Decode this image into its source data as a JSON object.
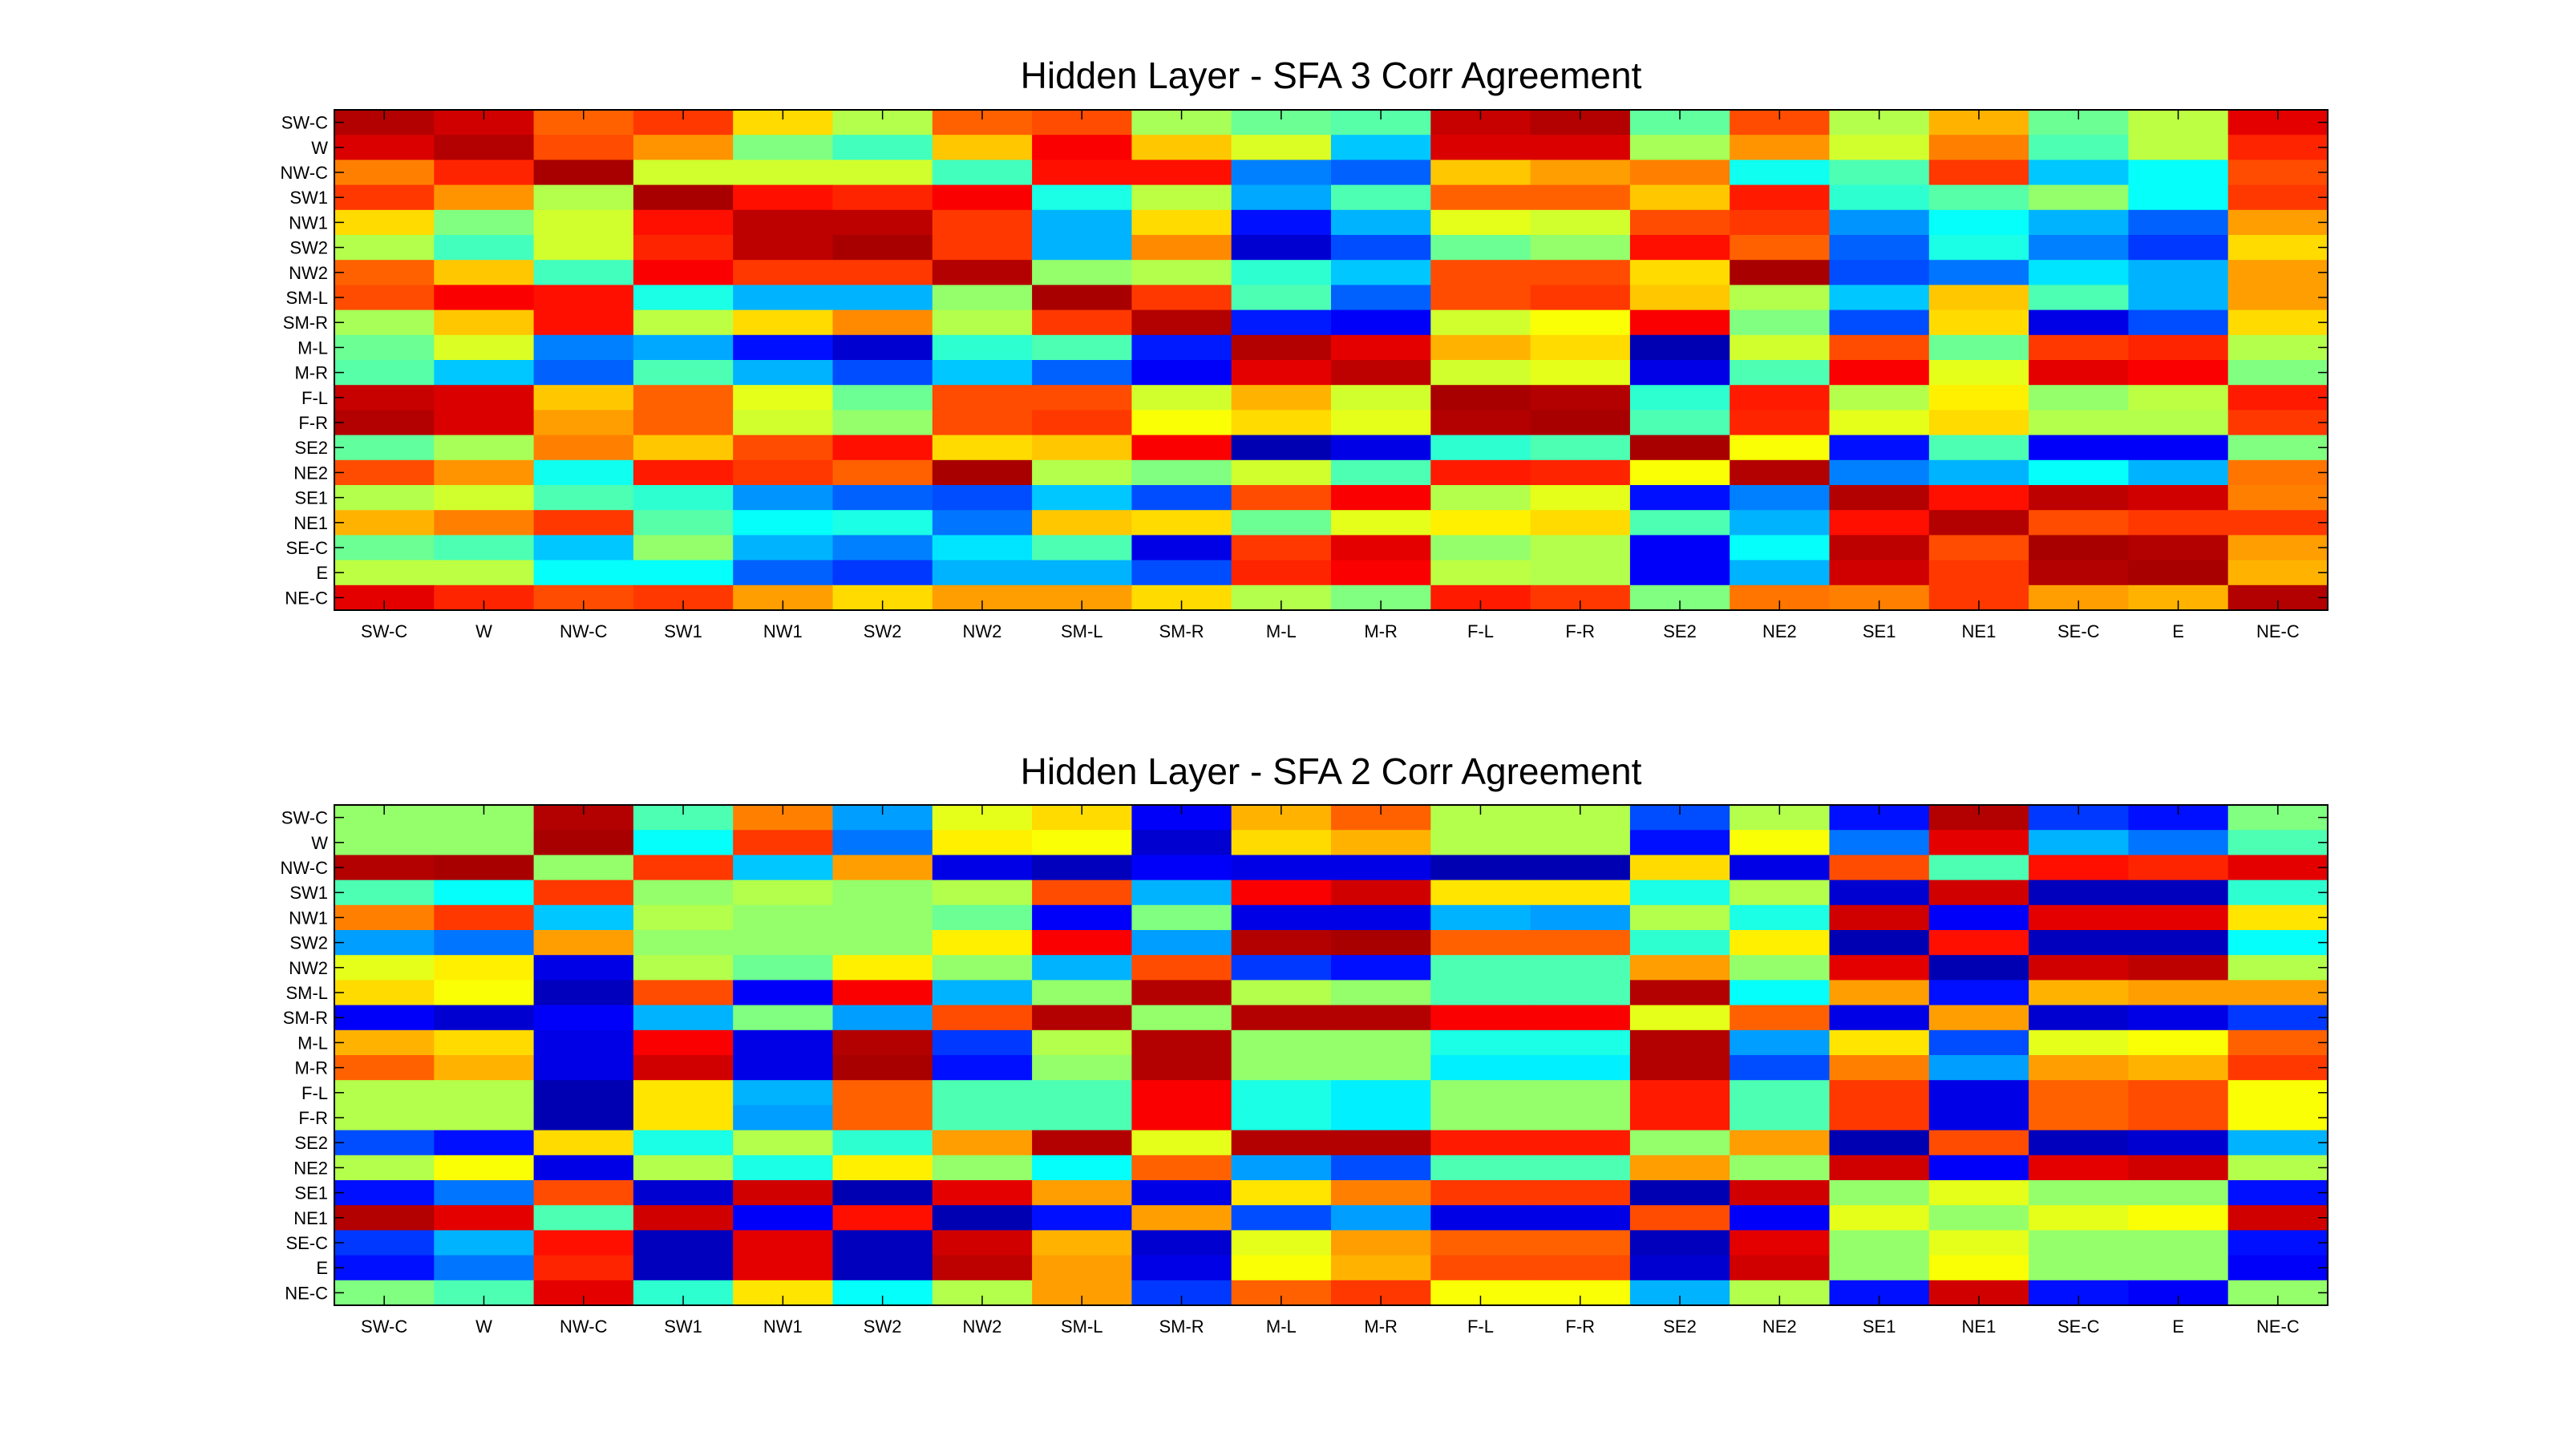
{
  "chart_data": [
    {
      "type": "heatmap",
      "title": "Hidden Layer - SFA 3 Corr Agreement",
      "xlabel": "",
      "ylabel": "",
      "colormap": "jet",
      "value_range": [
        0,
        1
      ],
      "x_categories": [
        "SW-C",
        "W",
        "NW-C",
        "SW1",
        "NW1",
        "SW2",
        "NW2",
        "SM-L",
        "SM-R",
        "M-L",
        "M-R",
        "F-L",
        "F-R",
        "SE2",
        "NE2",
        "SE1",
        "NE1",
        "SE-C",
        "E",
        "NE-C"
      ],
      "y_categories": [
        "SW-C",
        "W",
        "NW-C",
        "SW1",
        "NW1",
        "SW2",
        "NW2",
        "SM-L",
        "SM-R",
        "M-L",
        "M-R",
        "F-L",
        "F-R",
        "SE2",
        "NE2",
        "SE1",
        "NE1",
        "SE-C",
        "E",
        "NE-C"
      ],
      "grid": false,
      "values": [
        [
          0.95,
          0.92,
          0.78,
          0.82,
          0.66,
          0.55,
          0.78,
          0.8,
          0.54,
          0.48,
          0.46,
          0.93,
          0.95,
          0.47,
          0.8,
          0.55,
          0.7,
          0.48,
          0.56,
          0.9
        ],
        [
          0.91,
          0.95,
          0.8,
          0.73,
          0.5,
          0.44,
          0.68,
          0.88,
          0.68,
          0.59,
          0.32,
          0.91,
          0.91,
          0.54,
          0.73,
          0.58,
          0.75,
          0.45,
          0.56,
          0.84
        ],
        [
          0.75,
          0.84,
          0.96,
          0.58,
          0.58,
          0.58,
          0.44,
          0.86,
          0.86,
          0.25,
          0.22,
          0.68,
          0.72,
          0.75,
          0.39,
          0.45,
          0.82,
          0.32,
          0.38,
          0.8
        ],
        [
          0.82,
          0.73,
          0.55,
          0.96,
          0.86,
          0.84,
          0.88,
          0.4,
          0.56,
          0.29,
          0.45,
          0.78,
          0.78,
          0.68,
          0.85,
          0.42,
          0.46,
          0.52,
          0.38,
          0.82
        ],
        [
          0.66,
          0.5,
          0.58,
          0.86,
          0.94,
          0.94,
          0.82,
          0.3,
          0.66,
          0.14,
          0.3,
          0.6,
          0.58,
          0.8,
          0.82,
          0.27,
          0.38,
          0.3,
          0.22,
          0.72
        ],
        [
          0.55,
          0.44,
          0.58,
          0.84,
          0.94,
          0.96,
          0.82,
          0.3,
          0.74,
          0.08,
          0.2,
          0.48,
          0.52,
          0.86,
          0.78,
          0.22,
          0.4,
          0.25,
          0.18,
          0.66
        ],
        [
          0.78,
          0.68,
          0.44,
          0.88,
          0.82,
          0.82,
          0.95,
          0.52,
          0.55,
          0.42,
          0.32,
          0.8,
          0.8,
          0.66,
          0.96,
          0.2,
          0.24,
          0.35,
          0.3,
          0.72
        ],
        [
          0.8,
          0.88,
          0.86,
          0.4,
          0.3,
          0.3,
          0.52,
          0.96,
          0.82,
          0.45,
          0.22,
          0.8,
          0.82,
          0.68,
          0.55,
          0.32,
          0.68,
          0.45,
          0.3,
          0.72
        ],
        [
          0.54,
          0.68,
          0.86,
          0.56,
          0.66,
          0.74,
          0.55,
          0.82,
          0.95,
          0.15,
          0.12,
          0.58,
          0.62,
          0.88,
          0.5,
          0.2,
          0.66,
          0.1,
          0.2,
          0.66
        ],
        [
          0.48,
          0.59,
          0.25,
          0.29,
          0.14,
          0.08,
          0.42,
          0.45,
          0.15,
          0.95,
          0.9,
          0.7,
          0.66,
          0.05,
          0.58,
          0.8,
          0.48,
          0.82,
          0.84,
          0.55
        ],
        [
          0.46,
          0.32,
          0.22,
          0.45,
          0.3,
          0.2,
          0.32,
          0.22,
          0.12,
          0.9,
          0.94,
          0.58,
          0.6,
          0.1,
          0.45,
          0.88,
          0.6,
          0.9,
          0.88,
          0.5
        ],
        [
          0.93,
          0.91,
          0.68,
          0.78,
          0.6,
          0.48,
          0.8,
          0.8,
          0.58,
          0.7,
          0.58,
          0.96,
          0.95,
          0.42,
          0.85,
          0.55,
          0.64,
          0.52,
          0.56,
          0.85
        ],
        [
          0.95,
          0.91,
          0.72,
          0.78,
          0.58,
          0.52,
          0.8,
          0.82,
          0.62,
          0.66,
          0.6,
          0.95,
          0.96,
          0.45,
          0.84,
          0.6,
          0.66,
          0.55,
          0.55,
          0.82
        ],
        [
          0.47,
          0.54,
          0.75,
          0.68,
          0.8,
          0.86,
          0.66,
          0.68,
          0.88,
          0.05,
          0.1,
          0.42,
          0.45,
          0.96,
          0.62,
          0.14,
          0.45,
          0.12,
          0.12,
          0.5
        ],
        [
          0.8,
          0.73,
          0.39,
          0.85,
          0.82,
          0.78,
          0.96,
          0.55,
          0.5,
          0.58,
          0.45,
          0.85,
          0.84,
          0.62,
          0.95,
          0.25,
          0.3,
          0.38,
          0.3,
          0.76
        ],
        [
          0.55,
          0.58,
          0.45,
          0.42,
          0.27,
          0.22,
          0.2,
          0.32,
          0.2,
          0.8,
          0.88,
          0.55,
          0.6,
          0.14,
          0.25,
          0.95,
          0.86,
          0.94,
          0.92,
          0.75
        ],
        [
          0.7,
          0.75,
          0.82,
          0.46,
          0.38,
          0.4,
          0.24,
          0.68,
          0.66,
          0.48,
          0.6,
          0.64,
          0.66,
          0.45,
          0.3,
          0.86,
          0.95,
          0.8,
          0.82,
          0.82
        ],
        [
          0.48,
          0.45,
          0.32,
          0.52,
          0.3,
          0.25,
          0.35,
          0.45,
          0.1,
          0.82,
          0.9,
          0.52,
          0.55,
          0.12,
          0.38,
          0.94,
          0.8,
          0.96,
          0.95,
          0.72
        ],
        [
          0.56,
          0.56,
          0.38,
          0.38,
          0.22,
          0.18,
          0.3,
          0.3,
          0.2,
          0.84,
          0.88,
          0.56,
          0.55,
          0.12,
          0.3,
          0.92,
          0.82,
          0.95,
          0.96,
          0.7
        ],
        [
          0.9,
          0.84,
          0.8,
          0.82,
          0.72,
          0.66,
          0.72,
          0.72,
          0.66,
          0.55,
          0.5,
          0.85,
          0.82,
          0.5,
          0.76,
          0.75,
          0.82,
          0.72,
          0.7,
          0.95
        ]
      ]
    },
    {
      "type": "heatmap",
      "title": "Hidden Layer - SFA 2 Corr Agreement",
      "xlabel": "",
      "ylabel": "",
      "colormap": "jet",
      "value_range": [
        0,
        1
      ],
      "x_categories": [
        "SW-C",
        "W",
        "NW-C",
        "SW1",
        "NW1",
        "SW2",
        "NW2",
        "SM-L",
        "SM-R",
        "M-L",
        "M-R",
        "F-L",
        "F-R",
        "SE2",
        "NE2",
        "SE1",
        "NE1",
        "SE-C",
        "E",
        "NE-C"
      ],
      "y_categories": [
        "SW-C",
        "W",
        "NW-C",
        "SW1",
        "NW1",
        "SW2",
        "NW2",
        "SM-L",
        "SM-R",
        "M-L",
        "M-R",
        "F-L",
        "F-R",
        "SE2",
        "NE2",
        "SE1",
        "NE1",
        "SE-C",
        "E",
        "NE-C"
      ],
      "grid": false,
      "values": [
        [
          0.52,
          0.52,
          0.95,
          0.45,
          0.75,
          0.28,
          0.6,
          0.66,
          0.12,
          0.7,
          0.78,
          0.55,
          0.55,
          0.2,
          0.55,
          0.14,
          0.95,
          0.18,
          0.14,
          0.5
        ],
        [
          0.52,
          0.52,
          0.96,
          0.38,
          0.82,
          0.24,
          0.64,
          0.62,
          0.08,
          0.66,
          0.7,
          0.55,
          0.55,
          0.14,
          0.62,
          0.24,
          0.9,
          0.3,
          0.24,
          0.45
        ],
        [
          0.95,
          0.96,
          0.52,
          0.82,
          0.32,
          0.72,
          0.1,
          0.06,
          0.12,
          0.1,
          0.1,
          0.05,
          0.05,
          0.66,
          0.1,
          0.8,
          0.45,
          0.86,
          0.84,
          0.9
        ],
        [
          0.45,
          0.38,
          0.82,
          0.52,
          0.55,
          0.52,
          0.55,
          0.8,
          0.3,
          0.88,
          0.92,
          0.65,
          0.65,
          0.4,
          0.55,
          0.08,
          0.92,
          0.06,
          0.06,
          0.42
        ],
        [
          0.75,
          0.82,
          0.32,
          0.55,
          0.52,
          0.52,
          0.48,
          0.12,
          0.5,
          0.1,
          0.1,
          0.3,
          0.28,
          0.55,
          0.4,
          0.92,
          0.12,
          0.9,
          0.9,
          0.65
        ],
        [
          0.28,
          0.24,
          0.72,
          0.52,
          0.52,
          0.52,
          0.64,
          0.88,
          0.28,
          0.95,
          0.96,
          0.78,
          0.78,
          0.42,
          0.64,
          0.05,
          0.86,
          0.06,
          0.06,
          0.38
        ],
        [
          0.6,
          0.64,
          0.1,
          0.55,
          0.48,
          0.64,
          0.52,
          0.3,
          0.8,
          0.18,
          0.14,
          0.45,
          0.45,
          0.72,
          0.52,
          0.9,
          0.05,
          0.92,
          0.94,
          0.55
        ],
        [
          0.66,
          0.62,
          0.06,
          0.8,
          0.12,
          0.88,
          0.3,
          0.52,
          0.95,
          0.55,
          0.52,
          0.45,
          0.45,
          0.95,
          0.38,
          0.72,
          0.14,
          0.7,
          0.72,
          0.72
        ],
        [
          0.12,
          0.08,
          0.12,
          0.3,
          0.5,
          0.28,
          0.8,
          0.95,
          0.52,
          0.95,
          0.95,
          0.88,
          0.88,
          0.6,
          0.78,
          0.1,
          0.72,
          0.08,
          0.1,
          0.18
        ],
        [
          0.7,
          0.66,
          0.1,
          0.88,
          0.1,
          0.95,
          0.18,
          0.55,
          0.95,
          0.52,
          0.52,
          0.4,
          0.4,
          0.95,
          0.28,
          0.65,
          0.2,
          0.6,
          0.62,
          0.78
        ],
        [
          0.78,
          0.7,
          0.1,
          0.92,
          0.1,
          0.96,
          0.14,
          0.52,
          0.95,
          0.52,
          0.52,
          0.36,
          0.36,
          0.95,
          0.2,
          0.75,
          0.28,
          0.72,
          0.7,
          0.82
        ],
        [
          0.55,
          0.55,
          0.05,
          0.65,
          0.3,
          0.78,
          0.45,
          0.45,
          0.88,
          0.4,
          0.36,
          0.52,
          0.52,
          0.85,
          0.45,
          0.82,
          0.1,
          0.78,
          0.8,
          0.62
        ],
        [
          0.55,
          0.55,
          0.05,
          0.65,
          0.28,
          0.78,
          0.45,
          0.45,
          0.88,
          0.4,
          0.36,
          0.52,
          0.52,
          0.85,
          0.45,
          0.82,
          0.1,
          0.78,
          0.8,
          0.62
        ],
        [
          0.2,
          0.14,
          0.66,
          0.4,
          0.55,
          0.42,
          0.72,
          0.95,
          0.6,
          0.95,
          0.95,
          0.85,
          0.85,
          0.52,
          0.72,
          0.05,
          0.8,
          0.06,
          0.08,
          0.3
        ],
        [
          0.55,
          0.62,
          0.1,
          0.55,
          0.4,
          0.64,
          0.52,
          0.38,
          0.78,
          0.28,
          0.2,
          0.45,
          0.45,
          0.72,
          0.52,
          0.92,
          0.12,
          0.9,
          0.92,
          0.55
        ],
        [
          0.14,
          0.24,
          0.8,
          0.08,
          0.92,
          0.05,
          0.9,
          0.72,
          0.1,
          0.65,
          0.75,
          0.82,
          0.82,
          0.05,
          0.92,
          0.52,
          0.6,
          0.52,
          0.52,
          0.14
        ],
        [
          0.95,
          0.9,
          0.45,
          0.92,
          0.12,
          0.86,
          0.05,
          0.14,
          0.72,
          0.2,
          0.28,
          0.1,
          0.1,
          0.8,
          0.12,
          0.6,
          0.52,
          0.6,
          0.62,
          0.92
        ],
        [
          0.18,
          0.3,
          0.86,
          0.06,
          0.9,
          0.06,
          0.92,
          0.7,
          0.08,
          0.6,
          0.72,
          0.78,
          0.78,
          0.06,
          0.9,
          0.52,
          0.6,
          0.52,
          0.52,
          0.14
        ],
        [
          0.14,
          0.24,
          0.84,
          0.06,
          0.9,
          0.06,
          0.94,
          0.72,
          0.1,
          0.62,
          0.7,
          0.8,
          0.8,
          0.08,
          0.92,
          0.52,
          0.62,
          0.52,
          0.52,
          0.12
        ],
        [
          0.5,
          0.45,
          0.9,
          0.42,
          0.65,
          0.38,
          0.55,
          0.72,
          0.18,
          0.78,
          0.82,
          0.62,
          0.62,
          0.3,
          0.55,
          0.14,
          0.92,
          0.14,
          0.12,
          0.52
        ]
      ]
    }
  ]
}
